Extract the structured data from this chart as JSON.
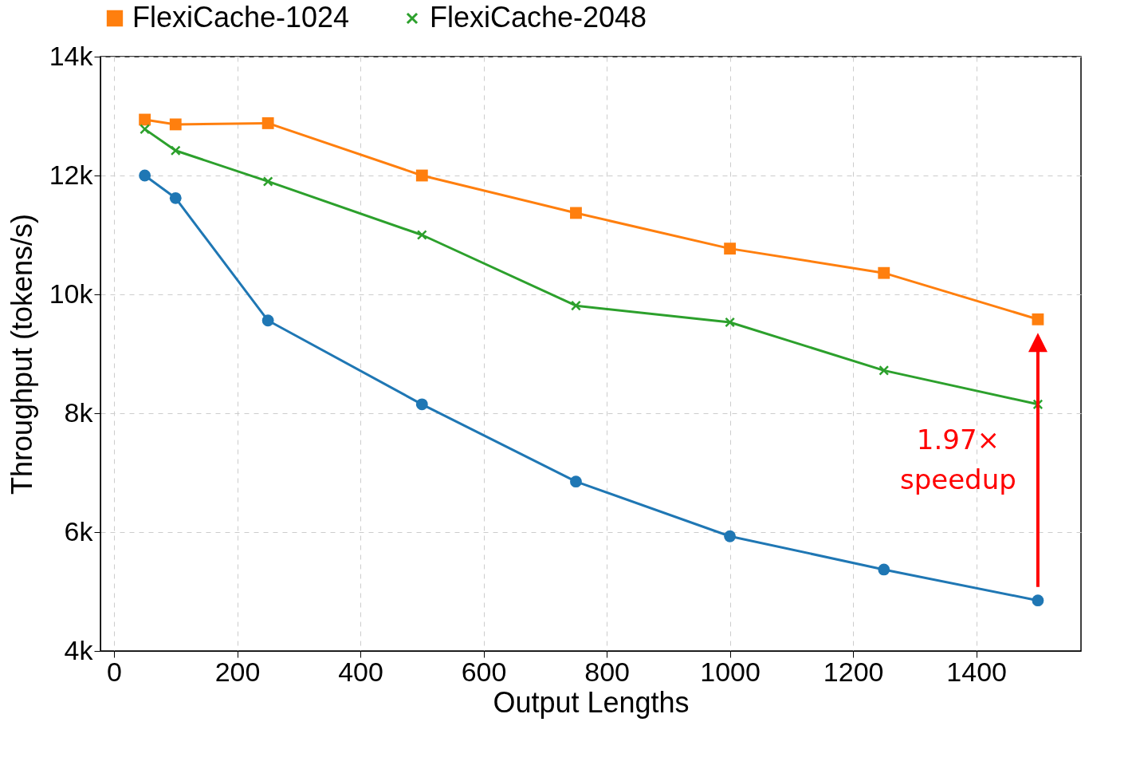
{
  "chart_data": {
    "type": "line",
    "xlabel": "Output Lengths",
    "ylabel": "Throughput (tokens/s)",
    "x": [
      50,
      100,
      250,
      500,
      750,
      1000,
      1250,
      1500
    ],
    "series": [
      {
        "color": "#1f77b4",
        "marker": "circle",
        "values": [
          12000,
          11620,
          9560,
          8150,
          6850,
          5930,
          5370,
          4850
        ]
      },
      {
        "name": "FlexiCache-1024",
        "color": "#ff7f0e",
        "marker": "square",
        "values": [
          12940,
          12860,
          12880,
          12000,
          11370,
          10770,
          10360,
          9580
        ]
      },
      {
        "name": "FlexiCache-2048",
        "color": "#2ca02c",
        "marker": "cross",
        "values": [
          12780,
          12420,
          11900,
          11000,
          9810,
          9530,
          8720,
          8150
        ]
      }
    ],
    "xlim": [
      -22,
      1570
    ],
    "xticks": [
      0,
      200,
      400,
      600,
      800,
      1000,
      1200,
      1400
    ],
    "ylim": [
      4000,
      14000
    ],
    "yticks": [
      {
        "value": 4000,
        "label": "4k"
      },
      {
        "value": 6000,
        "label": "6k"
      },
      {
        "value": 8000,
        "label": "8k"
      },
      {
        "value": 10000,
        "label": "10k"
      },
      {
        "value": 12000,
        "label": "12k"
      },
      {
        "value": 14000,
        "label": "14k"
      }
    ],
    "grid": true,
    "legend": "top",
    "line_style": "solid",
    "annotations": [
      "1.97× speedup"
    ]
  }
}
